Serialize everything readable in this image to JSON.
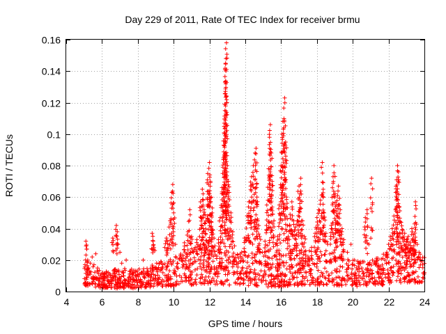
{
  "chart_data": {
    "type": "scatter",
    "title": "Day 229 of 2011, Rate Of TEC Index for receiver brmu",
    "xlabel": "GPS time / hours",
    "ylabel": "ROTI / TECUs",
    "xlim": [
      4,
      24
    ],
    "ylim": [
      0,
      0.16
    ],
    "x_ticks": [
      4,
      6,
      8,
      10,
      12,
      14,
      16,
      18,
      20,
      22,
      24
    ],
    "x_tick_labels": [
      "4",
      "6",
      "8",
      "10",
      "12",
      "14",
      "16",
      "18",
      "20",
      "22",
      "24"
    ],
    "y_ticks": [
      0,
      0.02,
      0.04,
      0.06,
      0.08,
      0.1,
      0.12,
      0.14,
      0.16
    ],
    "y_tick_labels": [
      "0",
      "0.02",
      "0.04",
      "0.06",
      "0.08",
      "0.1",
      "0.12",
      "0.14",
      "0.16"
    ],
    "grid": true,
    "marker": "+",
    "marker_color": "#ff0000",
    "series": [
      {
        "name": "ROTI",
        "points": [
          [
            5.1,
            0.032
          ],
          [
            5.15,
            0.027
          ],
          [
            5.2,
            0.02
          ],
          [
            5.25,
            0.015
          ],
          [
            5.3,
            0.012
          ],
          [
            5.35,
            0.018
          ],
          [
            5.45,
            0.022
          ],
          [
            5.55,
            0.017
          ],
          [
            5.65,
            0.024
          ],
          [
            5.75,
            0.015
          ],
          [
            5.9,
            0.01
          ],
          [
            6.1,
            0.008
          ],
          [
            6.3,
            0.007
          ],
          [
            6.5,
            0.009
          ],
          [
            6.6,
            0.034
          ],
          [
            6.7,
            0.014
          ],
          [
            6.8,
            0.042
          ],
          [
            6.85,
            0.038
          ],
          [
            6.9,
            0.03
          ],
          [
            7.0,
            0.025
          ],
          [
            7.1,
            0.018
          ],
          [
            7.2,
            0.012
          ],
          [
            7.35,
            0.02
          ],
          [
            7.5,
            0.009
          ],
          [
            7.7,
            0.012
          ],
          [
            7.9,
            0.01
          ],
          [
            8.1,
            0.011
          ],
          [
            8.3,
            0.02
          ],
          [
            8.5,
            0.012
          ],
          [
            8.8,
            0.037
          ],
          [
            8.85,
            0.032
          ],
          [
            8.95,
            0.026
          ],
          [
            9.1,
            0.014
          ],
          [
            9.3,
            0.019
          ],
          [
            9.5,
            0.028
          ],
          [
            9.6,
            0.034
          ],
          [
            9.65,
            0.032
          ],
          [
            9.8,
            0.045
          ],
          [
            9.9,
            0.063
          ],
          [
            9.95,
            0.068
          ],
          [
            10.0,
            0.05
          ],
          [
            10.1,
            0.03
          ],
          [
            10.2,
            0.018
          ],
          [
            10.4,
            0.022
          ],
          [
            10.6,
            0.031
          ],
          [
            10.8,
            0.038
          ],
          [
            10.9,
            0.052
          ],
          [
            11.0,
            0.035
          ],
          [
            11.1,
            0.025
          ],
          [
            11.2,
            0.028
          ],
          [
            11.3,
            0.033
          ],
          [
            11.5,
            0.057
          ],
          [
            11.6,
            0.065
          ],
          [
            11.65,
            0.058
          ],
          [
            11.7,
            0.052
          ],
          [
            11.8,
            0.045
          ],
          [
            11.9,
            0.075
          ],
          [
            11.95,
            0.068
          ],
          [
            12.0,
            0.082
          ],
          [
            12.05,
            0.07
          ],
          [
            12.1,
            0.06
          ],
          [
            12.15,
            0.05
          ],
          [
            12.2,
            0.039
          ],
          [
            12.3,
            0.029
          ],
          [
            12.4,
            0.021
          ],
          [
            12.5,
            0.033
          ],
          [
            12.6,
            0.047
          ],
          [
            12.7,
            0.066
          ],
          [
            12.75,
            0.079
          ],
          [
            12.8,
            0.093
          ],
          [
            12.82,
            0.105
          ],
          [
            12.85,
            0.119
          ],
          [
            12.87,
            0.133
          ],
          [
            12.9,
            0.145
          ],
          [
            12.92,
            0.148
          ],
          [
            12.95,
            0.158
          ],
          [
            13.0,
            0.08
          ],
          [
            13.05,
            0.07
          ],
          [
            13.1,
            0.063
          ],
          [
            13.2,
            0.05
          ],
          [
            13.3,
            0.038
          ],
          [
            13.4,
            0.029
          ],
          [
            13.6,
            0.018
          ],
          [
            13.8,
            0.025
          ],
          [
            13.95,
            0.034
          ],
          [
            14.1,
            0.048
          ],
          [
            14.2,
            0.057
          ],
          [
            14.3,
            0.067
          ],
          [
            14.35,
            0.073
          ],
          [
            14.45,
            0.08
          ],
          [
            14.55,
            0.088
          ],
          [
            14.6,
            0.091
          ],
          [
            14.65,
            0.06
          ],
          [
            14.7,
            0.045
          ],
          [
            14.8,
            0.035
          ],
          [
            14.95,
            0.025
          ],
          [
            15.1,
            0.032
          ],
          [
            15.2,
            0.055
          ],
          [
            15.3,
            0.078
          ],
          [
            15.35,
            0.098
          ],
          [
            15.4,
            0.106
          ],
          [
            15.45,
            0.088
          ],
          [
            15.5,
            0.07
          ],
          [
            15.6,
            0.045
          ],
          [
            15.7,
            0.03
          ],
          [
            15.8,
            0.035
          ],
          [
            15.9,
            0.055
          ],
          [
            16.0,
            0.08
          ],
          [
            16.05,
            0.1
          ],
          [
            16.1,
            0.108
          ],
          [
            16.15,
            0.104
          ],
          [
            16.2,
            0.123
          ],
          [
            16.25,
            0.095
          ],
          [
            16.3,
            0.06
          ],
          [
            16.4,
            0.035
          ],
          [
            16.5,
            0.049
          ],
          [
            16.6,
            0.057
          ],
          [
            16.7,
            0.045
          ],
          [
            16.8,
            0.041
          ],
          [
            16.9,
            0.045
          ],
          [
            17.0,
            0.067
          ],
          [
            17.05,
            0.062
          ],
          [
            17.1,
            0.072
          ],
          [
            17.2,
            0.045
          ],
          [
            17.3,
            0.035
          ],
          [
            17.5,
            0.02
          ],
          [
            17.7,
            0.028
          ],
          [
            17.9,
            0.037
          ],
          [
            18.0,
            0.047
          ],
          [
            18.1,
            0.052
          ],
          [
            18.2,
            0.058
          ],
          [
            18.3,
            0.082
          ],
          [
            18.35,
            0.065
          ],
          [
            18.4,
            0.05
          ],
          [
            18.5,
            0.037
          ],
          [
            18.6,
            0.03
          ],
          [
            18.8,
            0.042
          ],
          [
            18.9,
            0.073
          ],
          [
            18.95,
            0.08
          ],
          [
            19.0,
            0.06
          ],
          [
            19.05,
            0.045
          ],
          [
            19.1,
            0.055
          ],
          [
            19.15,
            0.061
          ],
          [
            19.2,
            0.067
          ],
          [
            19.3,
            0.052
          ],
          [
            19.4,
            0.04
          ],
          [
            19.5,
            0.033
          ],
          [
            19.7,
            0.025
          ],
          [
            19.9,
            0.03
          ],
          [
            20.1,
            0.02
          ],
          [
            20.3,
            0.018
          ],
          [
            20.5,
            0.015
          ],
          [
            20.7,
            0.047
          ],
          [
            20.8,
            0.052
          ],
          [
            20.9,
            0.03
          ],
          [
            21.05,
            0.072
          ],
          [
            21.1,
            0.02
          ],
          [
            21.2,
            0.018
          ],
          [
            21.4,
            0.012
          ],
          [
            21.6,
            0.014
          ],
          [
            21.8,
            0.02
          ],
          [
            21.9,
            0.025
          ],
          [
            22.0,
            0.03
          ],
          [
            22.1,
            0.035
          ],
          [
            22.2,
            0.04
          ],
          [
            22.3,
            0.048
          ],
          [
            22.4,
            0.063
          ],
          [
            22.45,
            0.071
          ],
          [
            22.5,
            0.08
          ],
          [
            22.55,
            0.076
          ],
          [
            22.6,
            0.054
          ],
          [
            22.7,
            0.044
          ],
          [
            22.8,
            0.039
          ],
          [
            22.9,
            0.037
          ],
          [
            23.0,
            0.033
          ],
          [
            23.1,
            0.035
          ],
          [
            23.2,
            0.031
          ],
          [
            23.3,
            0.04
          ],
          [
            23.4,
            0.036
          ],
          [
            23.45,
            0.043
          ],
          [
            23.5,
            0.057
          ],
          [
            23.6,
            0.03
          ],
          [
            23.7,
            0.025
          ],
          [
            23.8,
            0.02
          ],
          [
            23.9,
            0.017
          ],
          [
            24.0,
            0.012
          ]
        ],
        "baseline_envelope": [
          [
            5.0,
            0.004,
            0.022
          ],
          [
            6.0,
            0.002,
            0.012
          ],
          [
            7.0,
            0.002,
            0.015
          ],
          [
            8.0,
            0.002,
            0.014
          ],
          [
            9.0,
            0.003,
            0.018
          ],
          [
            10.0,
            0.003,
            0.022
          ],
          [
            11.0,
            0.004,
            0.028
          ],
          [
            12.0,
            0.005,
            0.03
          ],
          [
            13.0,
            0.004,
            0.026
          ],
          [
            14.0,
            0.004,
            0.024
          ],
          [
            15.0,
            0.003,
            0.026
          ],
          [
            16.0,
            0.003,
            0.026
          ],
          [
            17.0,
            0.004,
            0.028
          ],
          [
            18.0,
            0.004,
            0.026
          ],
          [
            19.0,
            0.004,
            0.024
          ],
          [
            20.0,
            0.003,
            0.02
          ],
          [
            21.0,
            0.004,
            0.02
          ],
          [
            22.0,
            0.004,
            0.026
          ],
          [
            23.0,
            0.005,
            0.03
          ],
          [
            24.0,
            0.006,
            0.022
          ]
        ]
      }
    ]
  }
}
